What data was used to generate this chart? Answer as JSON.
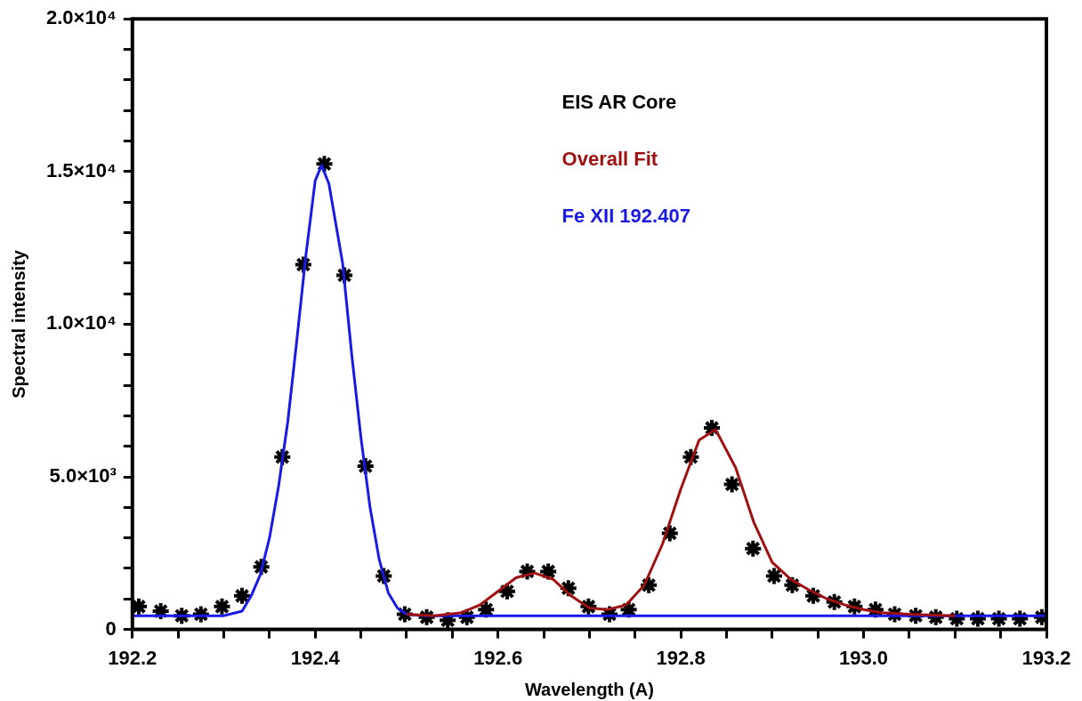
{
  "chart_data": {
    "type": "scatter",
    "xlabel": "Wavelength (A)",
    "ylabel": "Spectral intensity",
    "xlim": [
      192.2,
      193.2
    ],
    "xticks": [
      192.2,
      {
        "value": 192.25,
        "label": null
      },
      {
        "value": 192.3,
        "label": null
      },
      {
        "value": 192.35,
        "label": null
      },
      192.4,
      {
        "value": 192.45,
        "label": null
      },
      {
        "value": 192.5,
        "label": null
      },
      {
        "value": 192.55,
        "label": null
      },
      192.6,
      {
        "value": 192.65,
        "label": null
      },
      {
        "value": 192.7,
        "label": null
      },
      {
        "value": 192.75,
        "label": null
      },
      {
        "value": 192.8,
        "label": "192.8"
      },
      {
        "value": 192.85,
        "label": null
      },
      {
        "value": 192.9,
        "label": null
      },
      {
        "value": 192.95,
        "label": null
      },
      {
        "value": 193.0,
        "label": "193.0"
      },
      {
        "value": 193.05,
        "label": null
      },
      {
        "value": 193.1,
        "label": null
      },
      {
        "value": 193.15,
        "label": null
      },
      193.2
    ],
    "ylim": [
      0,
      20000
    ],
    "yticks": [
      {
        "value": 0,
        "label": "0"
      },
      {
        "value": 1000,
        "label": null
      },
      {
        "value": 2000,
        "label": null
      },
      {
        "value": 3000,
        "label": null
      },
      {
        "value": 4000,
        "label": null
      },
      {
        "value": 5000,
        "label": "5.0×10³"
      },
      {
        "value": 6000,
        "label": null
      },
      {
        "value": 7000,
        "label": null
      },
      {
        "value": 8000,
        "label": null
      },
      {
        "value": 9000,
        "label": null
      },
      {
        "value": 10000,
        "label": "1.0×10⁴"
      },
      {
        "value": 11000,
        "label": null
      },
      {
        "value": 12000,
        "label": null
      },
      {
        "value": 13000,
        "label": null
      },
      {
        "value": 14000,
        "label": null
      },
      {
        "value": 15000,
        "label": "1.5×10⁴"
      },
      {
        "value": 16000,
        "label": null
      },
      {
        "value": 17000,
        "label": null
      },
      {
        "value": 18000,
        "label": null
      },
      {
        "value": 19000,
        "label": null
      },
      {
        "value": 20000,
        "label": "2.0×10⁴"
      }
    ],
    "grid": false,
    "legend": "top right",
    "series": [
      {
        "name": "EIS AR Core",
        "color": "#000000",
        "marker": "cross",
        "x": [
          192.207,
          192.231,
          192.254,
          192.275,
          192.298,
          192.32,
          192.341,
          192.364,
          192.387,
          192.41,
          192.432,
          192.455,
          192.475,
          192.498,
          192.522,
          192.545,
          192.566,
          192.587,
          192.61,
          192.632,
          192.655,
          192.677,
          192.699,
          192.722,
          192.743,
          192.765,
          192.788,
          192.811,
          192.834,
          192.856,
          192.879,
          192.902,
          192.922,
          192.945,
          192.968,
          192.99,
          193.013,
          193.034,
          193.057,
          193.079,
          193.102,
          193.125,
          193.148,
          193.171,
          193.195
        ],
        "values": [
          750,
          600,
          450,
          500,
          750,
          1100,
          2050,
          5650,
          11950,
          15250,
          11600,
          5350,
          1750,
          500,
          400,
          300,
          400,
          650,
          1250,
          1900,
          1900,
          1350,
          750,
          500,
          650,
          1450,
          3150,
          5650,
          6600,
          4750,
          2650,
          1750,
          1450,
          1100,
          900,
          750,
          650,
          500,
          450,
          400,
          350,
          350,
          350,
          350,
          400
        ]
      },
      {
        "name": "Overall Fit",
        "type": "line",
        "color": "#a01010",
        "marker": "none",
        "line_style": "solid",
        "x": [
          192.5,
          192.53,
          192.56,
          192.58,
          192.6,
          192.62,
          192.64,
          192.66,
          192.68,
          192.7,
          192.72,
          192.74,
          192.76,
          192.78,
          192.8,
          192.82,
          192.838,
          192.86,
          192.88,
          192.9,
          192.92,
          192.94,
          192.96,
          192.98,
          193.0,
          193.02,
          193.05,
          193.1
        ],
        "values": [
          500,
          450,
          550,
          800,
          1250,
          1700,
          1850,
          1650,
          1100,
          700,
          650,
          800,
          1450,
          2800,
          4600,
          6200,
          6550,
          5300,
          3500,
          2200,
          1650,
          1300,
          1000,
          800,
          650,
          550,
          500,
          450
        ]
      },
      {
        "name": "Fe XII 192.407",
        "type": "line",
        "color": "#1a1ae6",
        "marker": "none",
        "line_style": "solid",
        "x": [
          192.2,
          192.3,
          192.32,
          192.33,
          192.34,
          192.35,
          192.36,
          192.37,
          192.38,
          192.39,
          192.4,
          192.407,
          192.415,
          192.43,
          192.44,
          192.45,
          192.46,
          192.47,
          192.48,
          192.49,
          192.5,
          192.52,
          193.2
        ],
        "values": [
          450,
          450,
          600,
          1100,
          1800,
          3000,
          4700,
          6800,
          9500,
          12300,
          14700,
          15200,
          14600,
          12000,
          9000,
          6300,
          4000,
          2300,
          1200,
          700,
          500,
          450,
          450
        ]
      }
    ]
  }
}
